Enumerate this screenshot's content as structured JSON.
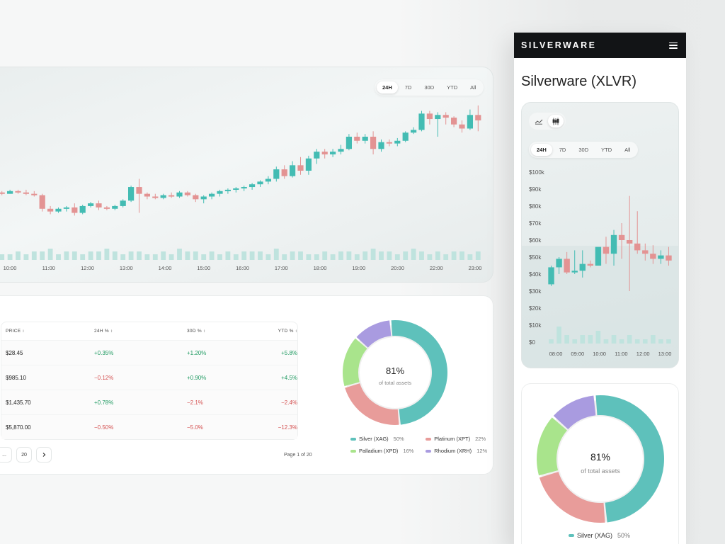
{
  "colors": {
    "up": "#43bcb3",
    "down": "#e39393",
    "volume": "#bfe3de",
    "silver": "#5ec1bb",
    "platinum": "#e89c9a",
    "palladium": "#a9e48c",
    "rhodium": "#a99be0"
  },
  "desktop_chart": {
    "ranges": [
      "24H",
      "7D",
      "30D",
      "YTD",
      "All"
    ],
    "active_range": "24H",
    "time_labels": [
      "10:00",
      "11:00",
      "12:00",
      "13:00",
      "14:00",
      "15:00",
      "16:00",
      "17:00",
      "18:00",
      "19:00",
      "20:00",
      "22:00",
      "23:00"
    ]
  },
  "table": {
    "headers": [
      "PRICE",
      "24H %",
      "30D %",
      "YTD %"
    ],
    "rows": [
      {
        "price": "$28.45",
        "h24": "+0.35%",
        "d30": "+1.20%",
        "ytd": "+5.8%"
      },
      {
        "price": "$985.10",
        "h24": "−0.12%",
        "d30": "+0.90%",
        "ytd": "+4.5%"
      },
      {
        "price": "$1,435.70",
        "h24": "+0.78%",
        "d30": "−2.1%",
        "ytd": "−2.4%"
      },
      {
        "price": "$5,870.00",
        "h24": "−0.50%",
        "d30": "−5.0%",
        "ytd": "−12.3%"
      }
    ],
    "pager": {
      "ellipsis": "...",
      "last": "20",
      "next_icon": "chevron-right-icon",
      "info": "Page 1 of 20"
    }
  },
  "allocation": {
    "center_value": "81%",
    "center_caption": "of total assets",
    "segments": [
      {
        "name": "Silver (XAG)",
        "pct_label": "50%",
        "pct": 50,
        "color_key": "silver"
      },
      {
        "name": "Platinum (XPT)",
        "pct_label": "22%",
        "pct": 22,
        "color_key": "platinum"
      },
      {
        "name": "Palladium (XPD)",
        "pct_label": "16%",
        "pct": 16,
        "color_key": "palladium"
      },
      {
        "name": "Rhodium (XRH)",
        "pct_label": "12%",
        "pct": 12,
        "color_key": "rhodium"
      }
    ]
  },
  "mobile": {
    "brand": "SILVERWARE",
    "menu_icon": "hamburger-menu-icon",
    "title": "Silverware (XLVR)",
    "chart_toggle": [
      "line-chart-icon",
      "candlestick-icon"
    ],
    "ranges": [
      "24H",
      "7D",
      "30D",
      "YTD",
      "All"
    ],
    "active_range": "24H",
    "y_labels": [
      "$100k",
      "$90k",
      "$80k",
      "$70k",
      "$60k",
      "$50k",
      "$40k",
      "$30k",
      "$20k",
      "$10k",
      "$0"
    ],
    "x_labels": [
      "08:00",
      "09:00",
      "10:00",
      "11:00",
      "12:00",
      "13:00"
    ],
    "legend_first": {
      "name": "Silver (XAG)",
      "pct_label": "50%"
    }
  },
  "chart_data": [
    {
      "type": "candlestick",
      "title": "",
      "x_labels": [
        "10:00",
        "11:00",
        "12:00",
        "13:00",
        "14:00",
        "15:00",
        "16:00",
        "17:00",
        "18:00",
        "19:00",
        "20:00",
        "22:00",
        "23:00"
      ],
      "ohlc": [
        [
          34,
          35,
          32,
          33
        ],
        [
          33,
          36,
          33,
          35
        ],
        [
          35,
          36,
          33,
          34
        ],
        [
          34,
          36,
          32,
          33
        ],
        [
          33,
          35,
          31,
          32
        ],
        [
          32,
          33,
          20,
          22
        ],
        [
          22,
          24,
          18,
          20
        ],
        [
          20,
          23,
          19,
          22
        ],
        [
          22,
          24,
          20,
          23
        ],
        [
          23,
          26,
          17,
          19
        ],
        [
          19,
          25,
          18,
          24
        ],
        [
          24,
          27,
          23,
          26
        ],
        [
          26,
          28,
          21,
          23
        ],
        [
          23,
          24,
          21,
          22
        ],
        [
          22,
          25,
          21,
          24
        ],
        [
          24,
          29,
          23,
          28
        ],
        [
          28,
          39,
          27,
          38
        ],
        [
          38,
          44,
          19,
          33
        ],
        [
          33,
          34,
          29,
          31
        ],
        [
          31,
          33,
          29,
          30
        ],
        [
          30,
          33,
          29,
          32
        ],
        [
          32,
          34,
          30,
          31
        ],
        [
          31,
          35,
          30,
          34
        ],
        [
          34,
          35,
          31,
          32
        ],
        [
          32,
          33,
          27,
          29
        ],
        [
          29,
          32,
          26,
          31
        ],
        [
          31,
          34,
          29,
          33
        ],
        [
          33,
          36,
          31,
          35
        ],
        [
          35,
          37,
          33,
          36
        ],
        [
          36,
          38,
          34,
          37
        ],
        [
          37,
          39,
          35,
          38
        ],
        [
          38,
          41,
          36,
          40
        ],
        [
          40,
          43,
          38,
          42
        ],
        [
          42,
          46,
          40,
          44
        ],
        [
          44,
          53,
          42,
          51
        ],
        [
          51,
          54,
          44,
          46
        ],
        [
          46,
          57,
          45,
          54
        ],
        [
          54,
          60,
          47,
          50
        ],
        [
          50,
          61,
          47,
          59
        ],
        [
          59,
          66,
          55,
          64
        ],
        [
          64,
          66,
          59,
          62
        ],
        [
          62,
          66,
          60,
          64
        ],
        [
          64,
          69,
          62,
          66
        ],
        [
          66,
          77,
          65,
          75
        ],
        [
          75,
          78,
          70,
          72
        ],
        [
          72,
          77,
          70,
          75
        ],
        [
          75,
          79,
          62,
          66
        ],
        [
          66,
          73,
          64,
          71
        ],
        [
          71,
          73,
          68,
          70
        ],
        [
          70,
          74,
          68,
          72
        ],
        [
          72,
          79,
          71,
          78
        ],
        [
          78,
          82,
          77,
          80
        ],
        [
          80,
          94,
          79,
          92
        ],
        [
          92,
          94,
          84,
          88
        ],
        [
          88,
          93,
          75,
          91
        ],
        [
          91,
          93,
          84,
          89
        ],
        [
          89,
          90,
          82,
          84
        ],
        [
          84,
          87,
          78,
          81
        ],
        [
          81,
          95,
          80,
          91
        ],
        [
          91,
          98,
          79,
          87
        ]
      ],
      "volume": [
        2,
        2,
        3,
        2,
        3,
        3,
        4,
        2,
        3,
        3,
        2,
        3,
        3,
        4,
        3,
        2,
        3,
        3,
        2,
        2,
        3,
        2,
        4,
        3,
        3,
        2,
        3,
        2,
        3,
        2,
        3,
        3,
        3,
        2,
        4,
        2,
        3,
        3,
        2,
        2,
        3,
        2,
        3,
        3,
        2,
        3,
        4,
        3,
        3,
        2,
        3,
        4,
        3,
        2,
        3,
        2,
        3,
        3,
        2,
        3
      ]
    },
    {
      "type": "candlestick",
      "title": "",
      "y_labels": [
        "$0",
        "$10k",
        "$20k",
        "$30k",
        "$40k",
        "$50k",
        "$60k",
        "$70k",
        "$80k",
        "$90k",
        "$100k"
      ],
      "ylim": [
        0,
        100000
      ],
      "x_labels": [
        "08:00",
        "09:00",
        "10:00",
        "11:00",
        "12:00",
        "13:00"
      ],
      "ohlc": [
        [
          34000,
          45000,
          33000,
          44000
        ],
        [
          44000,
          50000,
          40000,
          49000
        ],
        [
          49000,
          53000,
          40000,
          41000
        ],
        [
          41000,
          54000,
          40000,
          42000
        ],
        [
          42000,
          54000,
          38000,
          46000
        ],
        [
          46000,
          48000,
          44000,
          45000
        ],
        [
          45000,
          55000,
          45000,
          56000
        ],
        [
          56000,
          62000,
          46000,
          52000
        ],
        [
          52000,
          66000,
          45000,
          63000
        ],
        [
          63000,
          70000,
          49000,
          60000
        ],
        [
          60000,
          86000,
          30000,
          58000
        ],
        [
          58000,
          77000,
          52000,
          54000
        ],
        [
          54000,
          58000,
          48000,
          52000
        ],
        [
          52000,
          57000,
          46000,
          49000
        ],
        [
          49000,
          54000,
          46000,
          51000
        ],
        [
          51000,
          56000,
          45000,
          48000
        ]
      ],
      "volume": [
        1,
        4,
        2,
        1,
        2,
        2,
        3,
        1,
        2,
        1,
        2,
        1,
        1,
        2,
        1,
        1
      ]
    },
    {
      "type": "pie",
      "title": "",
      "categories": [
        "Silver (XAG)",
        "Platinum (XPT)",
        "Palladium (XPD)",
        "Rhodium (XRH)"
      ],
      "values": [
        50,
        22,
        16,
        12
      ]
    }
  ]
}
